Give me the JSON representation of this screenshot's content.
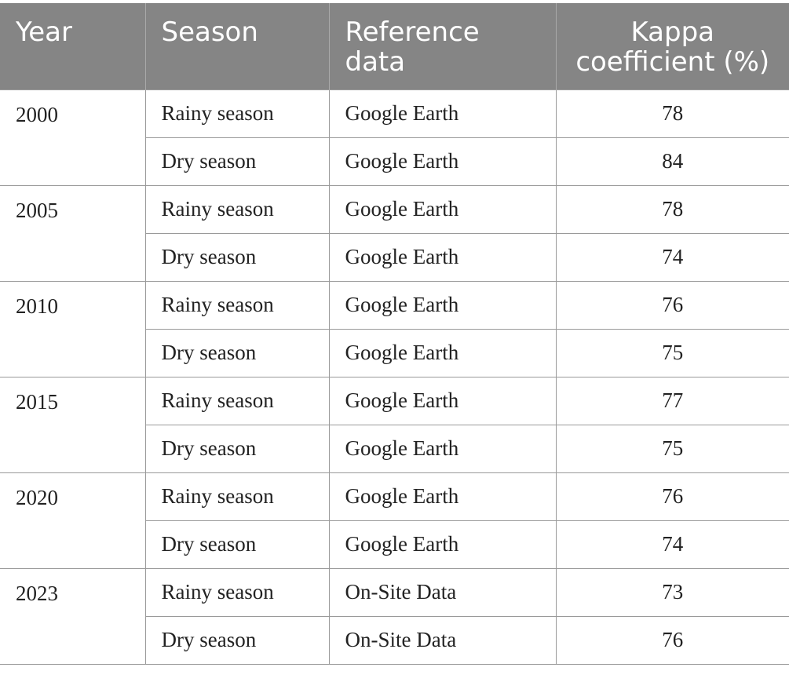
{
  "table": {
    "headers": {
      "year": "Year",
      "season": "Season",
      "reference_line1": "Reference",
      "reference_line2": "data",
      "kappa_line1": "Kappa",
      "kappa_line2": "coefficient (%)"
    },
    "groups": [
      {
        "year": "2000",
        "rows": [
          {
            "season": "Rainy season",
            "reference": "Google Earth",
            "kappa": "78"
          },
          {
            "season": "Dry season",
            "reference": "Google Earth",
            "kappa": "84"
          }
        ]
      },
      {
        "year": "2005",
        "rows": [
          {
            "season": "Rainy season",
            "reference": "Google Earth",
            "kappa": "78"
          },
          {
            "season": "Dry season",
            "reference": "Google Earth",
            "kappa": "74"
          }
        ]
      },
      {
        "year": "2010",
        "rows": [
          {
            "season": "Rainy season",
            "reference": "Google Earth",
            "kappa": "76"
          },
          {
            "season": "Dry season",
            "reference": "Google Earth",
            "kappa": "75"
          }
        ]
      },
      {
        "year": "2015",
        "rows": [
          {
            "season": "Rainy season",
            "reference": "Google Earth",
            "kappa": "77"
          },
          {
            "season": "Dry season",
            "reference": "Google Earth",
            "kappa": "75"
          }
        ]
      },
      {
        "year": "2020",
        "rows": [
          {
            "season": "Rainy season",
            "reference": "Google Earth",
            "kappa": "76"
          },
          {
            "season": "Dry season",
            "reference": "Google Earth",
            "kappa": "74"
          }
        ]
      },
      {
        "year": "2023",
        "rows": [
          {
            "season": "Rainy season",
            "reference": "On-Site Data",
            "kappa": "73"
          },
          {
            "season": "Dry season",
            "reference": "On-Site Data",
            "kappa": "76"
          }
        ]
      }
    ],
    "colors": {
      "header_background": "#858585",
      "header_text": "#ffffff",
      "grid_line": "#9a9a9a"
    }
  }
}
